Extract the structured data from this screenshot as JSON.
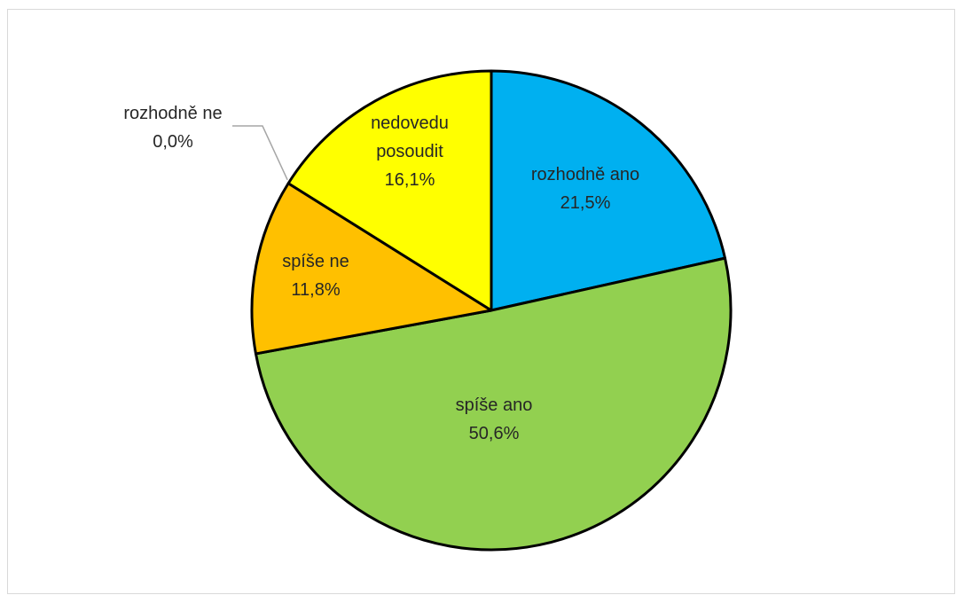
{
  "chart_data": {
    "type": "pie",
    "title": "",
    "slices": [
      {
        "name": "rozhodně ano",
        "label_lines": [
          "rozhodně ano"
        ],
        "value": 21.5,
        "value_label": "21,5%",
        "color": "#00B0F0"
      },
      {
        "name": "spíše ano",
        "label_lines": [
          "spíše ano"
        ],
        "value": 50.6,
        "value_label": "50,6%",
        "color": "#92D050"
      },
      {
        "name": "spíše ne",
        "label_lines": [
          "spíše ne"
        ],
        "value": 11.8,
        "value_label": "11,8%",
        "color": "#FFC000"
      },
      {
        "name": "rozhodně ne",
        "label_lines": [
          "rozhodně ne"
        ],
        "value": 0.0,
        "value_label": "0,0%",
        "color": "#FF0000"
      },
      {
        "name": "nedovedu posoudit",
        "label_lines": [
          "nedovedu",
          "posoudit"
        ],
        "value": 16.1,
        "value_label": "16,1%",
        "color": "#FFFF00"
      }
    ],
    "start_angle_deg": 0,
    "direction": "clockwise",
    "stroke_color": "#000000",
    "legend": "none"
  }
}
